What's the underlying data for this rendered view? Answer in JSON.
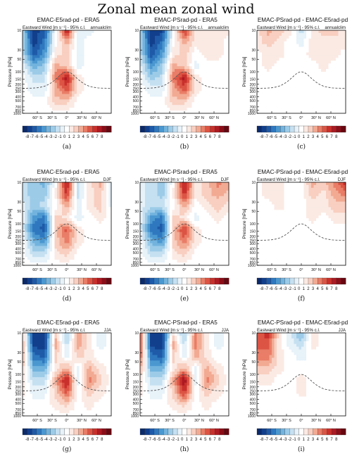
{
  "figure": {
    "title": "Zonal mean zonal wind"
  },
  "common": {
    "left_label": "Eastward Wind [m s⁻¹] - 95% c.l.",
    "ylabel": "Pressure [hPa]",
    "y_ticks": [
      "10",
      "30",
      "50",
      "100",
      "150",
      "200",
      "250",
      "300",
      "400",
      "500",
      "700",
      "850",
      "1000"
    ],
    "x_ticks": [
      "60° S",
      "30° S",
      "0°",
      "30° N",
      "60° N"
    ],
    "colorbar_labels": [
      "-8",
      "-7",
      "-6",
      "-5",
      "-4",
      "-3",
      "-2",
      "-1",
      "0",
      "1",
      "2",
      "3",
      "4",
      "5",
      "6",
      "7",
      "8"
    ],
    "colors": {
      "neg": [
        "#0b2a6b",
        "#123f8c",
        "#1e5aa8",
        "#2f78bf",
        "#4b97d0",
        "#72b3de",
        "#9ccbe8",
        "#c5e0f1",
        "#e7f2f9"
      ],
      "pos": [
        "#fbeae4",
        "#f8cfc0",
        "#f2aa93",
        "#e97d67",
        "#dc5444",
        "#c9302c",
        "#ad1a22",
        "#8c0d17",
        "#670710"
      ]
    }
  },
  "chart_data": [
    {
      "type": "heatmap",
      "label": "(a)",
      "title": "EMAC-E5rad-pd - ERA5",
      "season": "annualclim",
      "x": [
        -80,
        -60,
        -40,
        -20,
        0,
        20,
        40,
        60,
        80
      ],
      "y": [
        10,
        30,
        50,
        100,
        200,
        300,
        500,
        1000
      ],
      "values": [
        [
          -3,
          -8,
          -7,
          0,
          7,
          -1,
          -1,
          0,
          0
        ],
        [
          -2,
          -8,
          -6,
          0,
          3,
          -1,
          0,
          0,
          0
        ],
        [
          -2,
          -7,
          -5,
          1,
          2,
          -1,
          0,
          0,
          0
        ],
        [
          -1,
          -4,
          -3,
          3,
          2,
          -1,
          0,
          0,
          0
        ],
        [
          0,
          -2,
          -2,
          4,
          7,
          1,
          0,
          0,
          0
        ],
        [
          0,
          -1,
          -1,
          3,
          5,
          1,
          0,
          0,
          0
        ],
        [
          0,
          0,
          0,
          2,
          2,
          0,
          0,
          0,
          0
        ],
        [
          0,
          0,
          0,
          0,
          0,
          0,
          0,
          0,
          0
        ]
      ]
    },
    {
      "type": "heatmap",
      "label": "(b)",
      "title": "EMAC-PSrad-pd - ERA5",
      "season": "annualclim",
      "x": [
        -80,
        -60,
        -40,
        -20,
        0,
        20,
        40,
        60,
        80
      ],
      "y": [
        10,
        30,
        50,
        100,
        200,
        300,
        500,
        1000
      ],
      "values": [
        [
          -3,
          -8,
          -8,
          0,
          6,
          1,
          1,
          1,
          1
        ],
        [
          -2,
          -8,
          -6,
          0,
          3,
          1,
          1,
          1,
          0
        ],
        [
          -2,
          -7,
          -5,
          1,
          2,
          0,
          1,
          1,
          0
        ],
        [
          -1,
          -5,
          -3,
          3,
          2,
          -1,
          0,
          0,
          0
        ],
        [
          0,
          -3,
          -2,
          4,
          7,
          1,
          0,
          0,
          0
        ],
        [
          0,
          -1,
          -1,
          3,
          5,
          1,
          0,
          0,
          0
        ],
        [
          0,
          0,
          0,
          2,
          2,
          0,
          0,
          0,
          0
        ],
        [
          0,
          0,
          0,
          0,
          0,
          0,
          0,
          0,
          0
        ]
      ]
    },
    {
      "type": "heatmap",
      "label": "(c)",
      "title": "EMAC-PSrad-pd - EMAC-E5rad-pd",
      "season": "annualclim",
      "x": [
        -80,
        -60,
        -40,
        -20,
        0,
        20,
        40,
        60,
        80
      ],
      "y": [
        10,
        30,
        50,
        100,
        200,
        300,
        500,
        1000
      ],
      "values": [
        [
          1,
          3,
          2,
          1,
          -2,
          1,
          2,
          2,
          1
        ],
        [
          1,
          2,
          1,
          0,
          -1,
          1,
          1,
          1,
          1
        ],
        [
          0,
          1,
          1,
          0,
          0,
          1,
          1,
          1,
          0
        ],
        [
          0,
          1,
          0,
          0,
          0,
          0,
          1,
          0,
          0
        ],
        [
          0,
          0,
          0,
          0,
          0,
          0,
          0,
          0,
          0
        ],
        [
          0,
          0,
          0,
          0,
          0,
          0,
          0,
          0,
          0
        ],
        [
          0,
          0,
          0,
          0,
          0,
          0,
          0,
          0,
          0
        ],
        [
          0,
          0,
          0,
          0,
          0,
          0,
          0,
          0,
          0
        ]
      ]
    },
    {
      "type": "heatmap",
      "label": "(d)",
      "title": "EMAC-E5rad-pd - ERA5",
      "season": "DJF",
      "x": [
        -80,
        -60,
        -40,
        -20,
        0,
        20,
        40,
        60,
        80
      ],
      "y": [
        10,
        30,
        50,
        100,
        200,
        300,
        500,
        1000
      ],
      "values": [
        [
          -2,
          -3,
          -4,
          0,
          7,
          -2,
          1,
          3,
          -2
        ],
        [
          -2,
          -3,
          -3,
          1,
          6,
          -2,
          1,
          2,
          -1
        ],
        [
          -1,
          -3,
          -2,
          0,
          3,
          -1,
          1,
          2,
          -1
        ],
        [
          -1,
          -5,
          -6,
          2,
          1,
          -1,
          0,
          1,
          0
        ],
        [
          -1,
          -6,
          -7,
          2,
          5,
          1,
          0,
          0,
          0
        ],
        [
          0,
          -4,
          -5,
          2,
          4,
          1,
          0,
          0,
          0
        ],
        [
          0,
          -2,
          -2,
          1,
          2,
          0,
          0,
          0,
          0
        ],
        [
          0,
          0,
          0,
          0,
          0,
          0,
          0,
          0,
          0
        ]
      ]
    },
    {
      "type": "heatmap",
      "label": "(e)",
      "title": "EMAC-PSrad-pd - ERA5",
      "season": "DJF",
      "x": [
        -80,
        -60,
        -40,
        -20,
        0,
        20,
        40,
        60,
        80
      ],
      "y": [
        10,
        30,
        50,
        100,
        200,
        300,
        500,
        1000
      ],
      "values": [
        [
          -1,
          -2,
          -3,
          0,
          7,
          1,
          2,
          4,
          3
        ],
        [
          -1,
          -2,
          -3,
          1,
          6,
          1,
          2,
          3,
          2
        ],
        [
          -1,
          -2,
          -2,
          0,
          3,
          0,
          1,
          2,
          1
        ],
        [
          -1,
          -5,
          -6,
          2,
          1,
          -1,
          0,
          1,
          0
        ],
        [
          -1,
          -6,
          -7,
          2,
          6,
          1,
          0,
          0,
          0
        ],
        [
          0,
          -4,
          -5,
          2,
          4,
          1,
          0,
          0,
          0
        ],
        [
          0,
          -2,
          -2,
          1,
          2,
          0,
          0,
          0,
          0
        ],
        [
          0,
          0,
          0,
          0,
          0,
          0,
          0,
          0,
          0
        ]
      ]
    },
    {
      "type": "heatmap",
      "label": "(f)",
      "title": "EMAC-PSrad-pd - EMAC-E5rad-pd",
      "season": "DJF",
      "x": [
        -80,
        -60,
        -40,
        -20,
        0,
        20,
        40,
        60,
        80
      ],
      "y": [
        10,
        30,
        50,
        100,
        200,
        300,
        500,
        1000
      ],
      "values": [
        [
          0,
          1,
          1,
          0,
          0,
          3,
          2,
          4,
          6
        ],
        [
          0,
          1,
          1,
          0,
          0,
          2,
          1,
          3,
          4
        ],
        [
          0,
          0,
          1,
          0,
          0,
          1,
          1,
          2,
          2
        ],
        [
          0,
          0,
          0,
          0,
          0,
          1,
          0,
          1,
          1
        ],
        [
          0,
          0,
          0,
          0,
          0,
          0,
          0,
          0,
          0
        ],
        [
          0,
          0,
          0,
          0,
          0,
          0,
          0,
          0,
          0
        ],
        [
          0,
          0,
          0,
          0,
          0,
          0,
          0,
          0,
          0
        ],
        [
          0,
          0,
          0,
          0,
          0,
          0,
          0,
          0,
          0
        ]
      ]
    },
    {
      "type": "heatmap",
      "label": "(g)",
      "title": "EMAC-E5rad-pd - ERA5",
      "season": "JJA",
      "x": [
        -80,
        -60,
        -40,
        -20,
        0,
        20,
        40,
        60,
        80
      ],
      "y": [
        10,
        30,
        50,
        100,
        200,
        300,
        500,
        1000
      ],
      "values": [
        [
          2,
          -8,
          -8,
          2,
          -3,
          3,
          1,
          -1,
          0
        ],
        [
          3,
          -8,
          -8,
          3,
          -2,
          3,
          1,
          -1,
          0
        ],
        [
          3,
          -6,
          -7,
          2,
          -1,
          2,
          1,
          0,
          0
        ],
        [
          2,
          -4,
          -4,
          1,
          3,
          -1,
          3,
          1,
          0
        ],
        [
          1,
          -2,
          -2,
          3,
          7,
          -1,
          4,
          2,
          0
        ],
        [
          1,
          -1,
          -1,
          2,
          5,
          0,
          2,
          1,
          0
        ],
        [
          0,
          0,
          0,
          1,
          2,
          0,
          1,
          0,
          0
        ],
        [
          0,
          0,
          0,
          0,
          0,
          0,
          0,
          0,
          0
        ]
      ]
    },
    {
      "type": "heatmap",
      "label": "(h)",
      "title": "EMAC-PSrad-pd - ERA5",
      "season": "JJA",
      "x": [
        -80,
        -60,
        -40,
        -20,
        0,
        20,
        40,
        60,
        80
      ],
      "y": [
        10,
        30,
        50,
        100,
        200,
        300,
        500,
        1000
      ],
      "values": [
        [
          6,
          -8,
          -8,
          1,
          -3,
          4,
          1,
          -1,
          0
        ],
        [
          6,
          -8,
          -8,
          3,
          -2,
          4,
          1,
          -1,
          0
        ],
        [
          5,
          -6,
          -7,
          2,
          -1,
          3,
          1,
          0,
          0
        ],
        [
          3,
          -4,
          -4,
          1,
          3,
          -1,
          3,
          1,
          0
        ],
        [
          1,
          -2,
          -2,
          3,
          8,
          -1,
          4,
          2,
          0
        ],
        [
          1,
          -1,
          -1,
          2,
          6,
          0,
          2,
          1,
          0
        ],
        [
          0,
          0,
          0,
          1,
          2,
          0,
          1,
          0,
          0
        ],
        [
          0,
          0,
          0,
          0,
          0,
          0,
          0,
          0,
          0
        ]
      ]
    },
    {
      "type": "heatmap",
      "label": "(i)",
      "title": "EMAC-PSrad-pd - EMAC-E5rad-pd",
      "season": "JJA",
      "x": [
        -80,
        -60,
        -40,
        -20,
        0,
        20,
        40,
        60,
        80
      ],
      "y": [
        10,
        30,
        50,
        100,
        200,
        300,
        500,
        1000
      ],
      "values": [
        [
          5,
          6,
          1,
          -1,
          -4,
          1,
          0,
          0,
          0
        ],
        [
          5,
          5,
          1,
          -1,
          -2,
          1,
          0,
          0,
          0
        ],
        [
          4,
          4,
          1,
          0,
          -1,
          0,
          0,
          0,
          0
        ],
        [
          2,
          2,
          1,
          0,
          0,
          0,
          0,
          0,
          0
        ],
        [
          1,
          1,
          0,
          0,
          1,
          0,
          0,
          0,
          0
        ],
        [
          0,
          0,
          0,
          0,
          1,
          0,
          0,
          0,
          0
        ],
        [
          0,
          0,
          0,
          0,
          0,
          0,
          0,
          0,
          0
        ],
        [
          0,
          0,
          0,
          0,
          0,
          0,
          0,
          0,
          0
        ]
      ]
    }
  ]
}
